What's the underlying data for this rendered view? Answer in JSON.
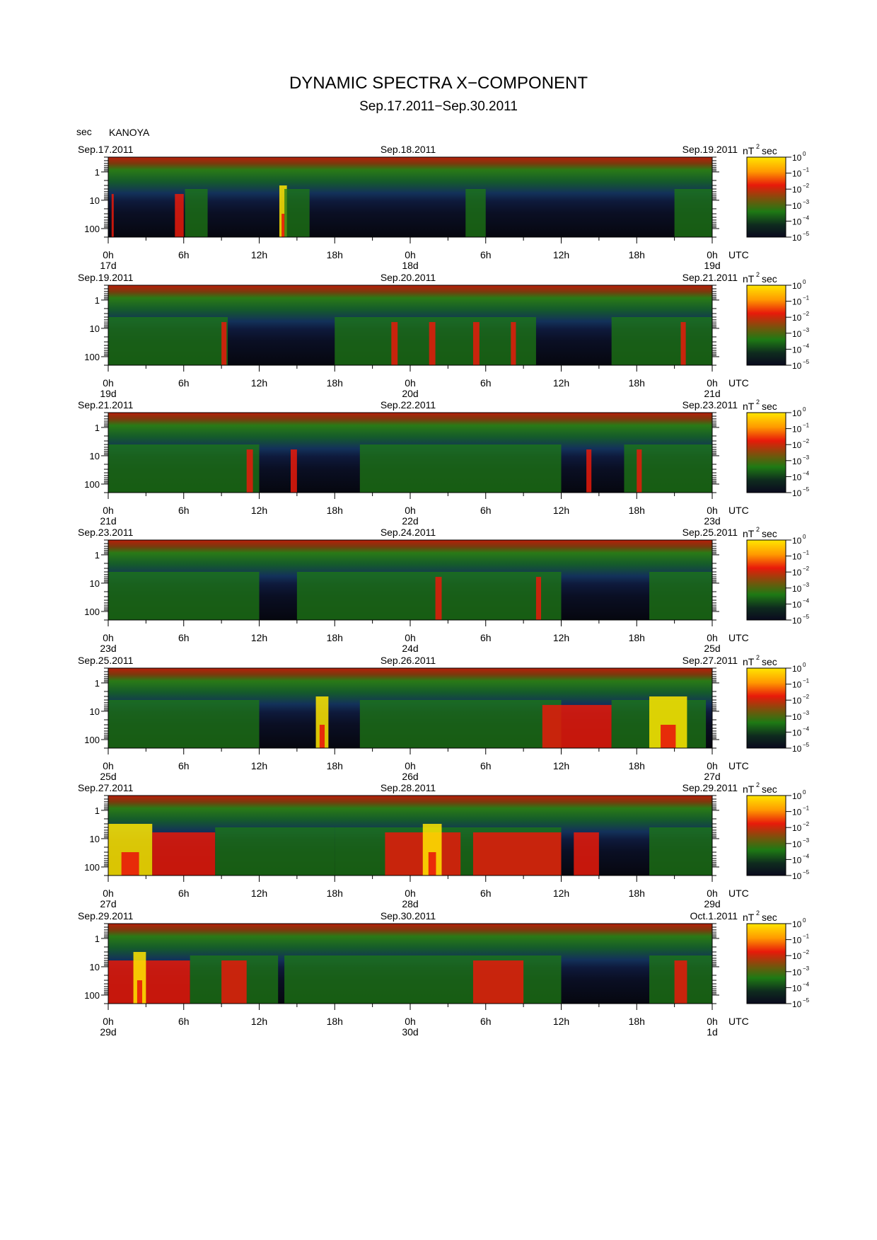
{
  "title": "DYNAMIC SPECTRA X−COMPONENT",
  "subtitle": "Sep.17.2011−Sep.30.2011",
  "station": "KANOYA",
  "y_unit": "sec",
  "colorbar_unit": "nT",
  "colorbar_unit_exp": "2",
  "colorbar_unit_suffix": "sec",
  "colorbar_ticks": [
    {
      "base": "10",
      "exp": "0"
    },
    {
      "base": "10",
      "exp": "−1"
    },
    {
      "base": "10",
      "exp": "−2"
    },
    {
      "base": "10",
      "exp": "−3"
    },
    {
      "base": "10",
      "exp": "−4"
    },
    {
      "base": "10",
      "exp": "−5"
    }
  ],
  "x_ticks": [
    "0h",
    "6h",
    "12h",
    "18h",
    "0h",
    "6h",
    "12h",
    "18h",
    "0h"
  ],
  "x_unit": "UTC",
  "y_ticks": [
    "1",
    "10",
    "100"
  ],
  "colors": {
    "low": "#0a0a1e",
    "mid": "#1e7a14",
    "high": "#e81a0a",
    "peak": "#ffe600"
  },
  "chart_data": [
    {
      "type": "heatmap",
      "date_left": "Sep.17.2011",
      "date_mid": "Sep.18.2011",
      "date_right": "Sep.19.2011",
      "day_labels": [
        "17d",
        "18d",
        "19d"
      ],
      "yscale": "log",
      "ylim": [
        0.3,
        200
      ],
      "clim": [
        1e-05,
        1
      ],
      "events": [
        [
          0.27,
          0.33,
          "high"
        ],
        [
          5.3,
          6.0,
          "high"
        ],
        [
          6.1,
          7.9,
          "mid"
        ],
        [
          13.6,
          14.2,
          "peak"
        ],
        [
          14.0,
          16.0,
          "mid"
        ],
        [
          28.4,
          30.0,
          "mid"
        ],
        [
          45.0,
          48.0,
          "mid"
        ]
      ]
    },
    {
      "type": "heatmap",
      "date_left": "Sep.19.2011",
      "date_mid": "Sep.20.2011",
      "date_right": "Sep.21.2011",
      "day_labels": [
        "19d",
        "20d",
        "21d"
      ],
      "yscale": "log",
      "ylim": [
        0.3,
        200
      ],
      "clim": [
        1e-05,
        1
      ],
      "events": [
        [
          0.0,
          9.5,
          "mid"
        ],
        [
          9.0,
          9.4,
          "high"
        ],
        [
          18.0,
          34.0,
          "mid"
        ],
        [
          22.5,
          23.0,
          "high"
        ],
        [
          25.5,
          26.0,
          "high"
        ],
        [
          29.0,
          29.5,
          "high"
        ],
        [
          32.0,
          32.4,
          "high"
        ],
        [
          40.0,
          48.0,
          "mid"
        ],
        [
          45.5,
          45.9,
          "high"
        ]
      ]
    },
    {
      "type": "heatmap",
      "date_left": "Sep.21.2011",
      "date_mid": "Sep.22.2011",
      "date_right": "Sep.23.2011",
      "day_labels": [
        "21d",
        "22d",
        "23d"
      ],
      "yscale": "log",
      "ylim": [
        0.3,
        200
      ],
      "clim": [
        1e-05,
        1
      ],
      "events": [
        [
          0.0,
          12.0,
          "mid"
        ],
        [
          11.0,
          11.5,
          "high"
        ],
        [
          14.5,
          15.0,
          "high"
        ],
        [
          20.0,
          36.0,
          "mid"
        ],
        [
          38.0,
          38.4,
          "high"
        ],
        [
          41.0,
          48.0,
          "mid"
        ],
        [
          42.0,
          42.4,
          "high"
        ]
      ]
    },
    {
      "type": "heatmap",
      "date_left": "Sep.23.2011",
      "date_mid": "Sep.24.2011",
      "date_right": "Sep.25.2011",
      "day_labels": [
        "23d",
        "24d",
        "25d"
      ],
      "yscale": "log",
      "ylim": [
        0.3,
        200
      ],
      "clim": [
        1e-05,
        1
      ],
      "events": [
        [
          0.0,
          12.0,
          "mid"
        ],
        [
          15.0,
          36.0,
          "mid"
        ],
        [
          26.0,
          26.5,
          "high"
        ],
        [
          34.0,
          34.4,
          "high"
        ],
        [
          43.0,
          48.0,
          "mid"
        ]
      ]
    },
    {
      "type": "heatmap",
      "date_left": "Sep.25.2011",
      "date_mid": "Sep.26.2011",
      "date_right": "Sep.27.2011",
      "day_labels": [
        "25d",
        "26d",
        "27d"
      ],
      "yscale": "log",
      "ylim": [
        0.3,
        200
      ],
      "clim": [
        1e-05,
        1
      ],
      "events": [
        [
          0.0,
          12.0,
          "mid"
        ],
        [
          16.5,
          17.5,
          "peak"
        ],
        [
          20.0,
          36.0,
          "mid"
        ],
        [
          34.5,
          40.0,
          "high"
        ],
        [
          40.0,
          47.5,
          "mid"
        ],
        [
          43.0,
          46.0,
          "peak"
        ]
      ]
    },
    {
      "type": "heatmap",
      "date_left": "Sep.27.2011",
      "date_mid": "Sep.28.2011",
      "date_right": "Sep.29.2011",
      "day_labels": [
        "27d",
        "28d",
        "29d"
      ],
      "yscale": "log",
      "ylim": [
        0.3,
        200
      ],
      "clim": [
        1e-05,
        1
      ],
      "events": [
        [
          0.0,
          3.5,
          "peak"
        ],
        [
          3.5,
          8.5,
          "high"
        ],
        [
          8.5,
          18.0,
          "mid"
        ],
        [
          18.0,
          36.0,
          "mid"
        ],
        [
          22.0,
          28.0,
          "high"
        ],
        [
          25.0,
          26.5,
          "peak"
        ],
        [
          29.0,
          36.0,
          "high"
        ],
        [
          37.0,
          39.0,
          "high"
        ],
        [
          43.0,
          48.0,
          "mid"
        ]
      ]
    },
    {
      "type": "heatmap",
      "date_left": "Sep.29.2011",
      "date_mid": "Sep.30.2011",
      "date_right": "Oct.1.2011",
      "day_labels": [
        "29d",
        "30d",
        "1d"
      ],
      "yscale": "log",
      "ylim": [
        0.3,
        200
      ],
      "clim": [
        1e-05,
        1
      ],
      "events": [
        [
          0.0,
          6.5,
          "high"
        ],
        [
          2.0,
          3.0,
          "peak"
        ],
        [
          6.5,
          13.5,
          "mid"
        ],
        [
          9.0,
          11.0,
          "high"
        ],
        [
          14.0,
          36.0,
          "mid"
        ],
        [
          29.0,
          33.0,
          "high"
        ],
        [
          43.0,
          48.0,
          "mid"
        ],
        [
          45.0,
          46.0,
          "high"
        ]
      ]
    }
  ]
}
